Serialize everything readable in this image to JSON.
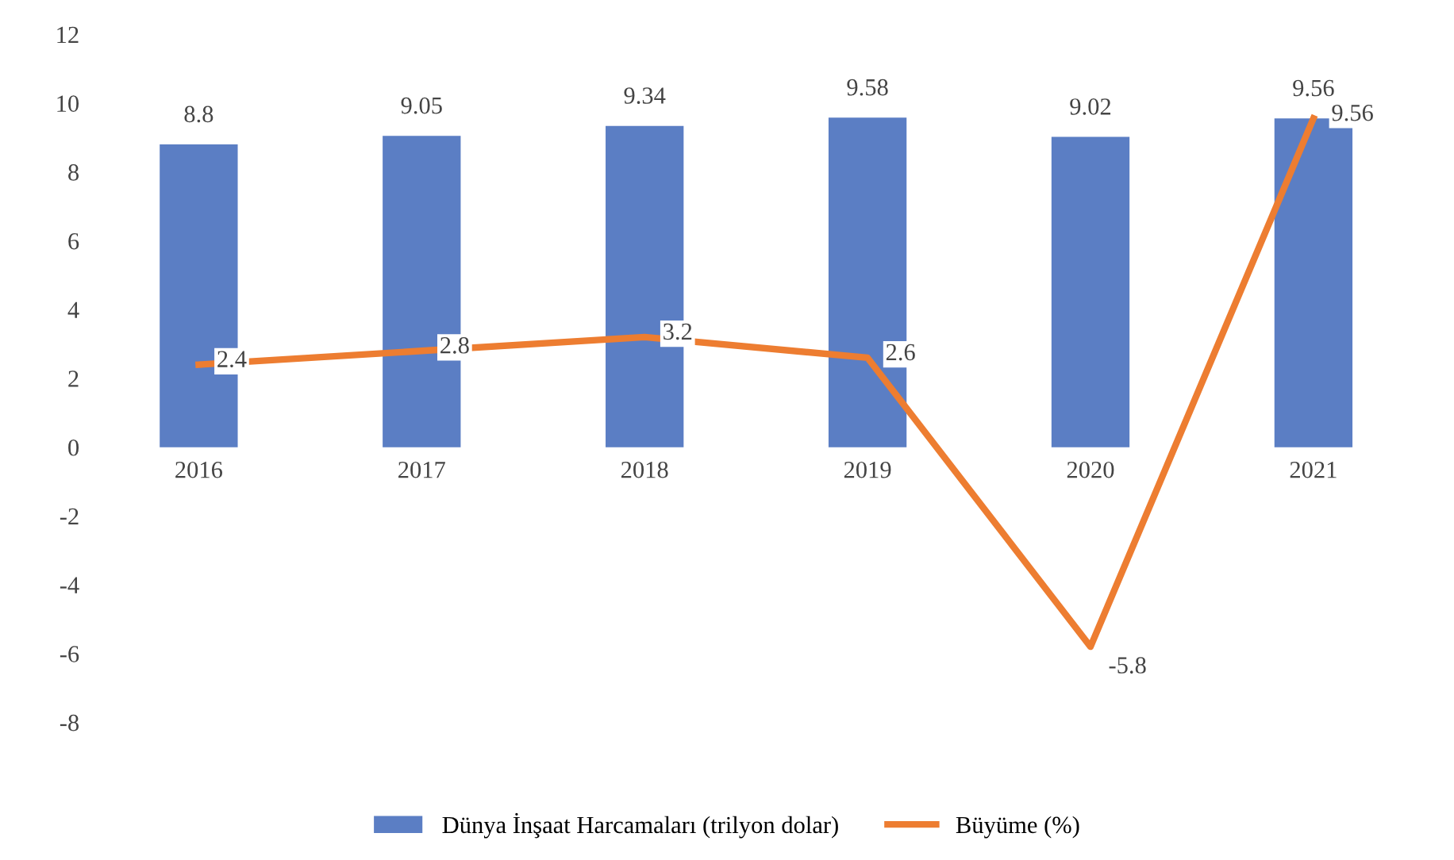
{
  "chart_data": {
    "type": "bar",
    "categories": [
      "2016",
      "2017",
      "2018",
      "2019",
      "2020",
      "2021"
    ],
    "series": [
      {
        "name": "Dünya İnşaat Harcamaları (trilyon dolar)",
        "color": "#5b7ec4",
        "values": [
          8.8,
          9.05,
          9.34,
          9.58,
          9.02,
          9.56
        ]
      },
      {
        "name": "Büyüme (%)",
        "type": "line",
        "color": "#ed7d31",
        "values": [
          2.4,
          2.8,
          3.2,
          2.6,
          -5.8,
          9.56
        ]
      }
    ],
    "ylim": [
      -8,
      12
    ],
    "yticks": [
      -8,
      -6,
      -4,
      -2,
      0,
      2,
      4,
      6,
      8,
      10,
      12
    ],
    "data_labels": true,
    "legend": "bottom",
    "grid": false
  }
}
